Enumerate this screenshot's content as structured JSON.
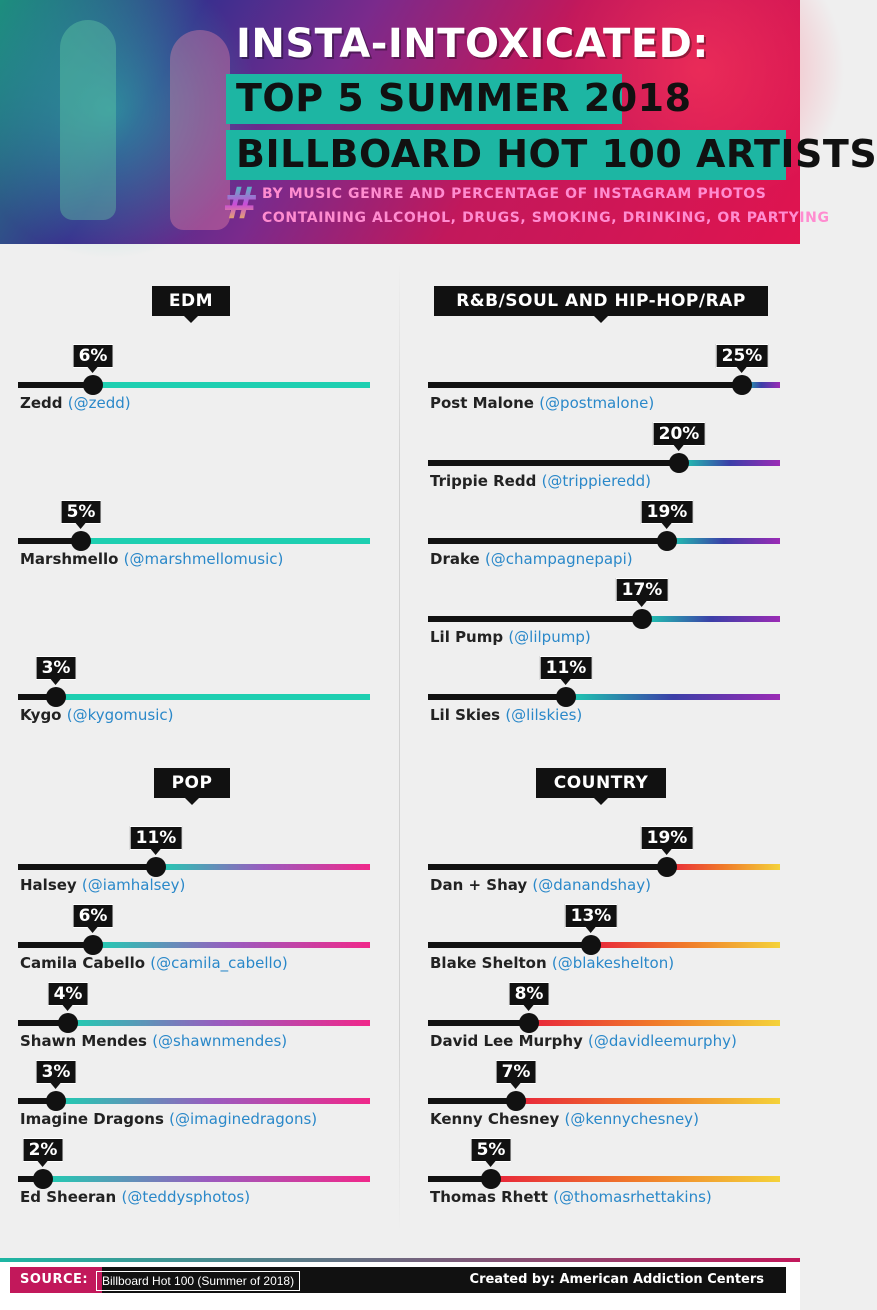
{
  "header": {
    "title_line1": "INSTA-INTOXICATED:",
    "title_line2": "TOP 5 SUMMER 2018",
    "title_line3": "BILLBOARD HOT 100 ARTISTS",
    "hash_symbol": "#",
    "subtitle_line1": "BY MUSIC GENRE AND PERCENTAGE OF INSTAGRAM PHOTOS",
    "subtitle_line2": "CONTAINING ALCOHOL, DRUGS, SMOKING, DRINKING, OR PARTYING"
  },
  "chart_data": [
    {
      "type": "bar",
      "genre": "EDM",
      "value_unit": "%",
      "ylim": [
        0,
        28
      ],
      "track_color": "#1ecfb1",
      "categories": [
        "Zedd",
        "Marshmello",
        "Kygo"
      ],
      "handles": [
        "(@zedd)",
        "(@marshmellomusic)",
        "(@kygomusic)"
      ],
      "values": [
        6,
        5,
        3
      ]
    },
    {
      "type": "bar",
      "genre": "R&B/SOUL AND HIP-HOP/RAP",
      "value_unit": "%",
      "ylim": [
        0,
        28
      ],
      "track_colors": [
        "#1ecfb1",
        "#3b3fa8",
        "#9b2bb5"
      ],
      "categories": [
        "Post Malone",
        "Trippie Redd",
        "Drake",
        "Lil Pump",
        "Lil Skies"
      ],
      "handles": [
        "(@postmalone)",
        "(@trippieredd)",
        "(@champagnepapi)",
        "(@lilpump)",
        "(@lilskies)"
      ],
      "values": [
        25,
        20,
        19,
        17,
        11
      ]
    },
    {
      "type": "bar",
      "genre": "POP",
      "value_unit": "%",
      "ylim": [
        0,
        28
      ],
      "track_colors": [
        "#1ecfb1",
        "#9a5bbf",
        "#f0288a"
      ],
      "categories": [
        "Halsey",
        "Camila Cabello",
        "Shawn Mendes",
        "Imagine Dragons",
        "Ed Sheeran"
      ],
      "handles": [
        "(@iamhalsey)",
        "(@camila_cabello)",
        "(@shawnmendes)",
        "(@imaginedragons)",
        "(@teddysphotos)"
      ],
      "values": [
        11,
        6,
        4,
        3,
        2
      ]
    },
    {
      "type": "bar",
      "genre": "COUNTRY",
      "value_unit": "%",
      "ylim": [
        0,
        28
      ],
      "track_colors": [
        "#e8253b",
        "#f07a2a",
        "#f4d23a"
      ],
      "categories": [
        "Dan + Shay",
        "Blake Shelton",
        "David Lee Murphy",
        "Kenny Chesney",
        "Thomas Rhett"
      ],
      "handles": [
        "(@danandshay)",
        "(@blakeshelton)",
        "(@davidleemurphy)",
        "(@kennychesney)",
        "(@thomasrhettakins)"
      ],
      "values": [
        19,
        13,
        8,
        7,
        5
      ]
    }
  ],
  "footer": {
    "source_label": "SOURCE:",
    "source_value": "Billboard Hot 100 (Summer of 2018)",
    "credit": "Created by: American Addiction Centers"
  }
}
